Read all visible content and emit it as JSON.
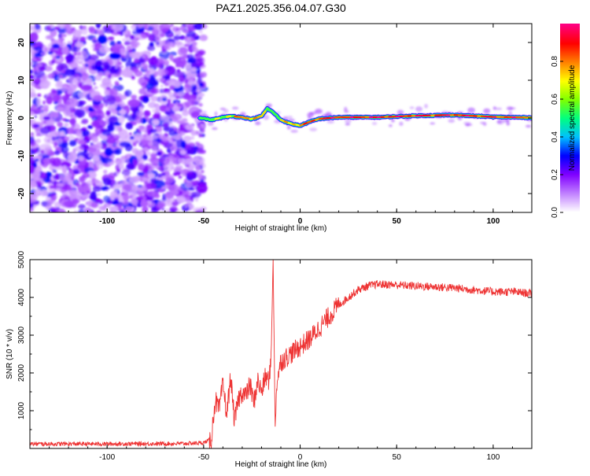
{
  "title": "PAZ1.2025.356.04.07.G30",
  "chart_data": [
    {
      "type": "heatmap",
      "xlabel": "Height of straight line (km)",
      "ylabel": "Frequency (Hz)",
      "xlim": [
        -140,
        120
      ],
      "ylim": [
        -25,
        25
      ],
      "xticks": [
        -100,
        -50,
        0,
        50,
        100
      ],
      "yticks": [
        -20,
        -10,
        0,
        10,
        20
      ],
      "colorbar": {
        "label": "Normalized spectral amplitude",
        "range": [
          0,
          1
        ],
        "ticks": [
          0.0,
          0.2,
          0.4,
          0.6,
          0.8
        ],
        "colors": [
          "#ffffff",
          "#c080ff",
          "#8000ff",
          "#0000ff",
          "#00c0ff",
          "#00ff80",
          "#80ff00",
          "#ffff00",
          "#ff8000",
          "#ff0000",
          "#ff0080"
        ]
      },
      "noise_region": {
        "x_range": [
          -140,
          -50
        ],
        "max_amplitude": 0.25
      },
      "signal_ridge": {
        "x": [
          -52,
          -46,
          -40,
          -35,
          -30,
          -25,
          -20,
          -17,
          -14,
          -10,
          -5,
          0,
          5,
          10,
          20,
          40,
          60,
          80,
          100,
          120
        ],
        "frequency": [
          0.1,
          -0.5,
          0.2,
          0.5,
          0.2,
          -0.3,
          0.5,
          2.5,
          1.5,
          -0.5,
          -1.5,
          -2.0,
          -1.0,
          -0.2,
          0.2,
          0.2,
          0.6,
          0.8,
          0.3,
          0.1
        ],
        "amplitude": [
          0.5,
          0.6,
          0.7,
          0.75,
          0.8,
          0.8,
          0.7,
          0.55,
          0.6,
          0.7,
          0.75,
          0.8,
          0.85,
          0.9,
          0.9,
          0.92,
          0.9,
          0.9,
          0.88,
          0.85
        ]
      }
    },
    {
      "type": "line",
      "xlabel": "Height of straight line (km)",
      "ylabel": "SNR (10 * v/v)",
      "xlim": [
        -140,
        120
      ],
      "ylim": [
        0,
        5000
      ],
      "xticks": [
        -100,
        -50,
        0,
        50,
        100
      ],
      "yticks": [
        1000,
        2000,
        3000,
        4000,
        5000
      ],
      "series": [
        {
          "name": "SNR",
          "color": "#ee3333",
          "x": [
            -140,
            -100,
            -60,
            -50,
            -46,
            -44,
            -42,
            -40,
            -38,
            -36,
            -34,
            -32,
            -30,
            -28,
            -26,
            -24,
            -22,
            -20,
            -18,
            -16,
            -15,
            -14,
            -13,
            -12,
            -10,
            -5,
            0,
            5,
            10,
            15,
            20,
            25,
            30,
            35,
            40,
            50,
            60,
            70,
            80,
            90,
            100,
            110,
            120
          ],
          "y": [
            120,
            120,
            130,
            150,
            250,
            1300,
            1000,
            1700,
            900,
            1900,
            700,
            1300,
            1500,
            1400,
            1700,
            1200,
            1800,
            1500,
            1900,
            1800,
            2500,
            5000,
            600,
            1800,
            2300,
            2500,
            2700,
            2900,
            3200,
            3500,
            3800,
            4000,
            4200,
            4300,
            4350,
            4330,
            4300,
            4280,
            4250,
            4200,
            4150,
            4150,
            4100
          ]
        }
      ]
    }
  ]
}
